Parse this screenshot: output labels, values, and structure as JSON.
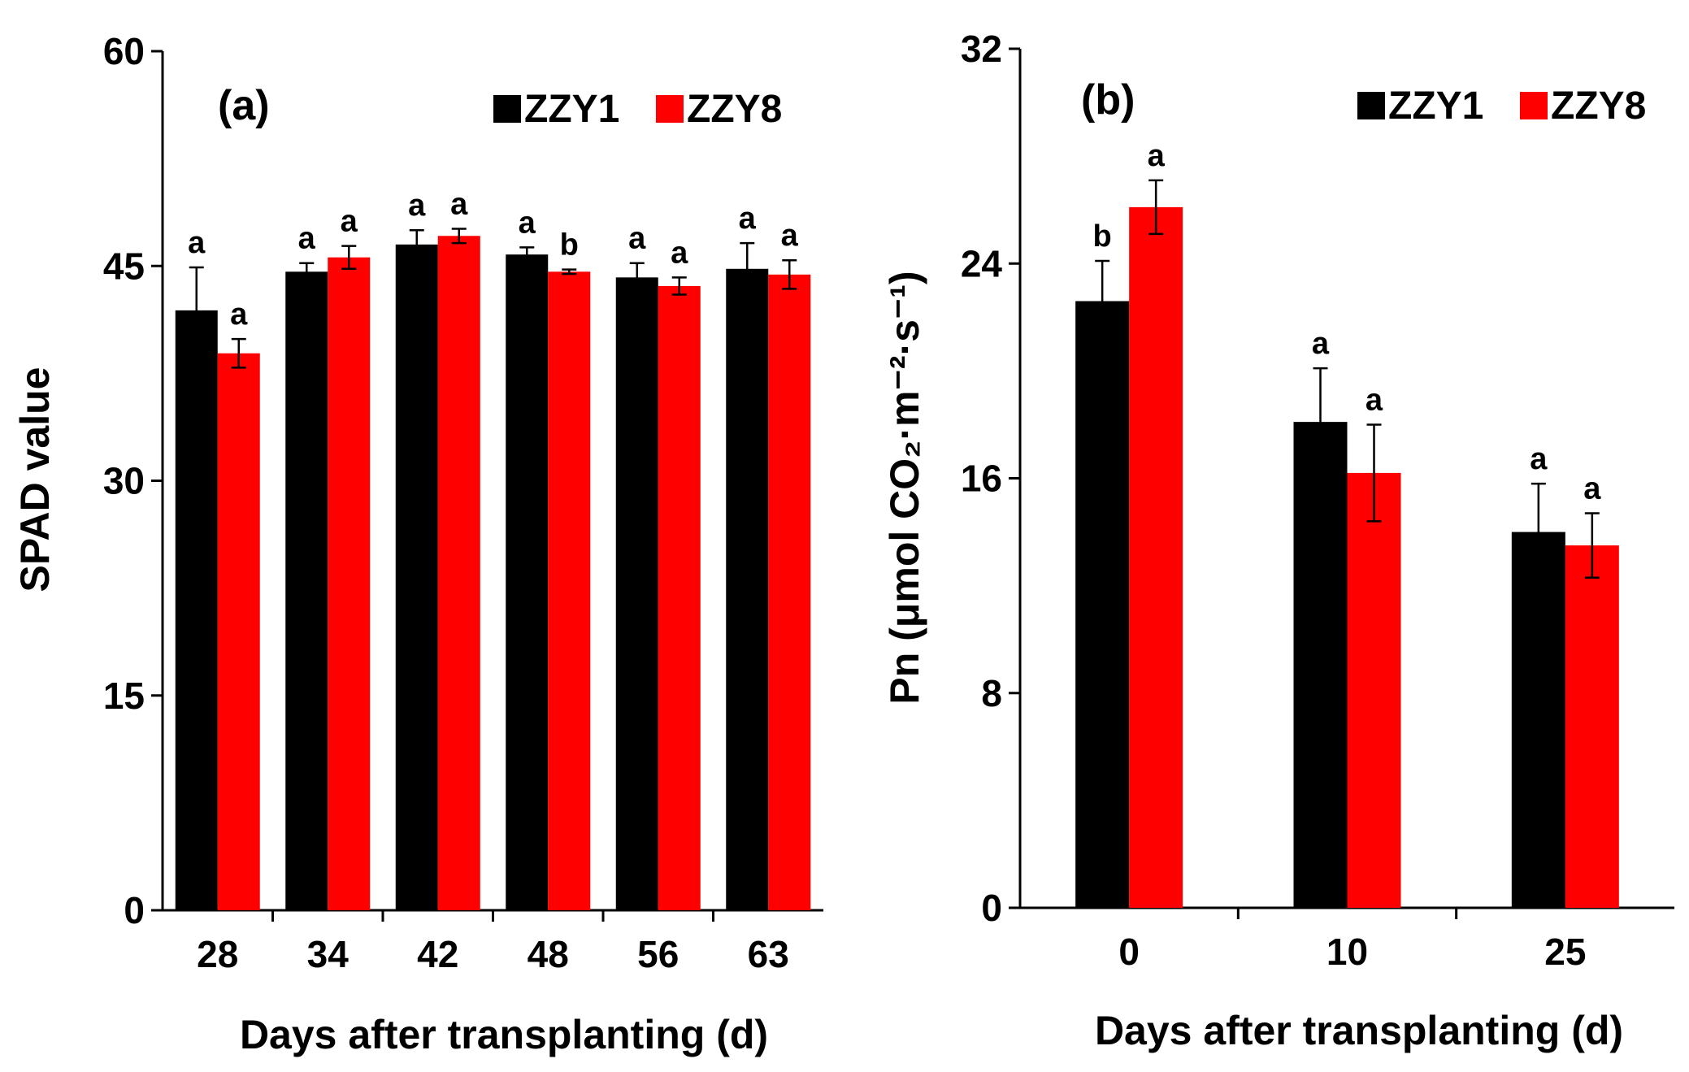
{
  "colors": {
    "ZZY1": "#000000",
    "ZZY8": "#ff0000"
  },
  "chart_data": [
    {
      "type": "bar",
      "panel_label": "(a)",
      "categories": [
        "28",
        "34",
        "42",
        "48",
        "56",
        "63"
      ],
      "xlabel": "Days after transplanting (d)",
      "ylabel": "SPAD value",
      "ylim": [
        0,
        60
      ],
      "yticks": [
        "0",
        "15",
        "30",
        "45",
        "60"
      ],
      "legend_position": "top-right",
      "series": [
        {
          "name": "ZZY1",
          "values": [
            41.9,
            44.6,
            46.5,
            45.8,
            44.2,
            44.8
          ],
          "errors": [
            3.0,
            0.6,
            1.0,
            0.5,
            1.0,
            1.8
          ],
          "letters": [
            "a",
            "a",
            "a",
            "a",
            "a",
            "a"
          ]
        },
        {
          "name": "ZZY8",
          "values": [
            38.9,
            45.6,
            47.1,
            44.6,
            43.6,
            44.4
          ],
          "errors": [
            1.0,
            0.8,
            0.5,
            0.15,
            0.6,
            1.0
          ],
          "letters": [
            "a",
            "a",
            "a",
            "b",
            "a",
            "a"
          ]
        }
      ]
    },
    {
      "type": "bar",
      "panel_label": "(b)",
      "categories": [
        "0",
        "10",
        "25"
      ],
      "xlabel": "Days after transplanting (d)",
      "ylabel": "Pn (μmol CO₂·m⁻²·s⁻¹)",
      "ylim": [
        0,
        32
      ],
      "yticks": [
        "0",
        "8",
        "16",
        "24",
        "32"
      ],
      "legend_position": "top-right",
      "series": [
        {
          "name": "ZZY1",
          "values": [
            22.6,
            18.1,
            14.0
          ],
          "errors": [
            1.5,
            2.0,
            1.8
          ],
          "letters": [
            "b",
            "a",
            "a"
          ]
        },
        {
          "name": "ZZY8",
          "values": [
            26.1,
            16.2,
            13.5
          ],
          "errors": [
            1.0,
            1.8,
            1.2
          ],
          "letters": [
            "a",
            "a",
            "a"
          ]
        }
      ]
    }
  ]
}
